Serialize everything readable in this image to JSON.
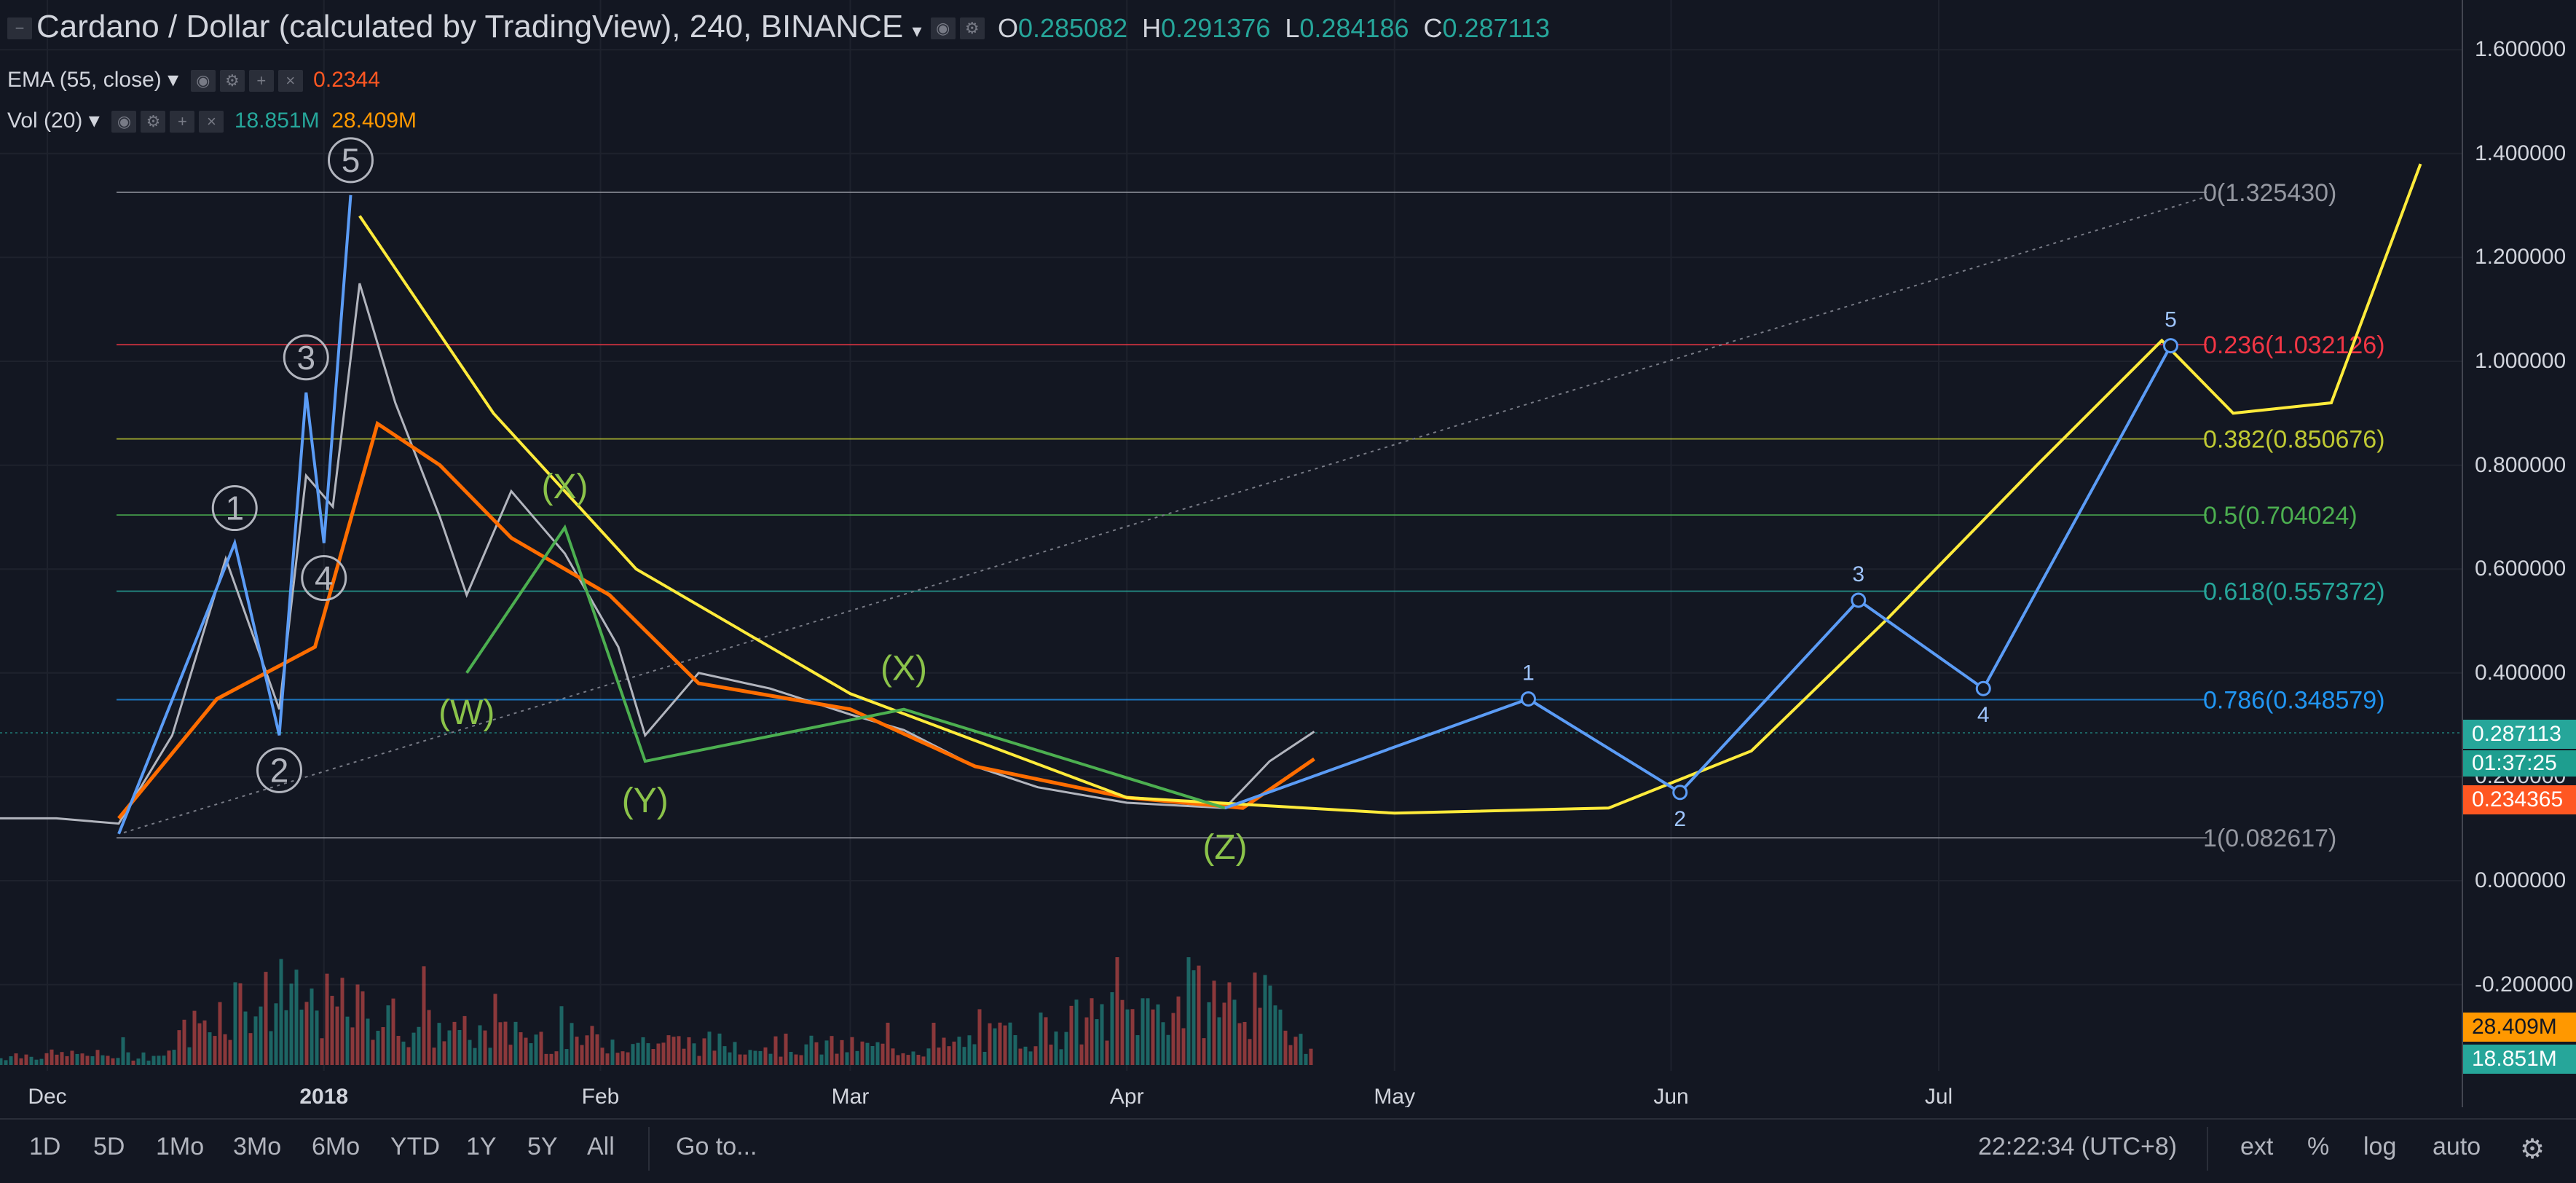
{
  "legend": {
    "symbol_title": "Cardano / Dollar (calculated by TradingView), 240, BINANCE",
    "open_label": "O",
    "open_value": "0.285082",
    "high_label": "H",
    "high_value": "0.291376",
    "low_label": "L",
    "low_value": "0.284186",
    "close_label": "C",
    "close_value": "0.287113",
    "ema_label": "EMA (55, close)",
    "ema_value": "0.2344",
    "vol_label": "Vol (20)",
    "vol_value_1": "18.851M",
    "vol_value_2": "28.409M"
  },
  "colors": {
    "background": "#131722",
    "up": "#26a69a",
    "down": "#ef5350",
    "ema": "#ff6d00",
    "fit_curve": "#ffeb3b",
    "wave": "#5b9cf6",
    "wxyz": "#8bc34a"
  },
  "chart_data": {
    "type": "line",
    "ylim": [
      -0.35,
      1.7
    ],
    "y_ticks": [
      "1.600000",
      "1.400000",
      "1.200000",
      "1.000000",
      "0.800000",
      "0.600000",
      "0.400000",
      "0.200000",
      "0.000000",
      "-0.200000"
    ],
    "x_ticks": [
      "Dec",
      "2018",
      "Feb",
      "Mar",
      "Apr",
      "May",
      "Jun",
      "Jul"
    ],
    "fib_levels": [
      {
        "ratio": "0",
        "price": "1.325430",
        "label": "0(1.325430)",
        "color": "#9598a1"
      },
      {
        "ratio": "0.236",
        "price": "1.032126",
        "label": "0.236(1.032126)",
        "color": "#f23645"
      },
      {
        "ratio": "0.382",
        "price": "0.850676",
        "label": "0.382(0.850676)",
        "color": "#c0ca33"
      },
      {
        "ratio": "0.5",
        "price": "0.704024",
        "label": "0.5(0.704024)",
        "color": "#4caf50"
      },
      {
        "ratio": "0.618",
        "price": "0.557372",
        "label": "0.618(0.557372)",
        "color": "#26a69a"
      },
      {
        "ratio": "0.786",
        "price": "0.348579",
        "label": "0.786(0.348579)",
        "color": "#2196f3"
      },
      {
        "ratio": "1",
        "price": "0.082617",
        "label": "1(0.082617)",
        "color": "#9598a1"
      }
    ],
    "impulse_waves": [
      {
        "label": "1",
        "date": "2017-12-22",
        "price": 0.65
      },
      {
        "label": "2",
        "date": "2017-12-27",
        "price": 0.28
      },
      {
        "label": "3",
        "date": "2017-12-30",
        "price": 0.94
      },
      {
        "label": "4",
        "date": "2018-01-01",
        "price": 0.65
      },
      {
        "label": "5",
        "date": "2018-01-04",
        "price": 1.32
      }
    ],
    "correction_waves": [
      {
        "label": "(W)",
        "date": "2018-01-17",
        "price": 0.4
      },
      {
        "label": "(X)",
        "date": "2018-01-28",
        "price": 0.68
      },
      {
        "label": "(Y)",
        "date": "2018-02-06",
        "price": 0.23
      },
      {
        "label": "(X)",
        "date": "2018-03-07",
        "price": 0.33
      },
      {
        "label": "(Z)",
        "date": "2018-04-12",
        "price": 0.14
      }
    ],
    "projected_waves": [
      {
        "label": "1",
        "date": "2018-05-16",
        "price": 0.35
      },
      {
        "label": "2",
        "date": "2018-06-02",
        "price": 0.17
      },
      {
        "label": "3",
        "date": "2018-06-22",
        "price": 0.54
      },
      {
        "label": "4",
        "date": "2018-07-06",
        "price": 0.37
      },
      {
        "label": "5",
        "date": "2018-07-27",
        "price": 1.03
      }
    ],
    "price_series": [
      {
        "date": "2017-11-25",
        "price": 0.12
      },
      {
        "date": "2017-12-02",
        "price": 0.12
      },
      {
        "date": "2017-12-09",
        "price": 0.11
      },
      {
        "date": "2017-12-15",
        "price": 0.28
      },
      {
        "date": "2017-12-21",
        "price": 0.62
      },
      {
        "date": "2017-12-27",
        "price": 0.33
      },
      {
        "date": "2017-12-30",
        "price": 0.78
      },
      {
        "date": "2018-01-02",
        "price": 0.72
      },
      {
        "date": "2018-01-05",
        "price": 1.15
      },
      {
        "date": "2018-01-09",
        "price": 0.92
      },
      {
        "date": "2018-01-14",
        "price": 0.7
      },
      {
        "date": "2018-01-17",
        "price": 0.55
      },
      {
        "date": "2018-01-22",
        "price": 0.75
      },
      {
        "date": "2018-01-28",
        "price": 0.63
      },
      {
        "date": "2018-02-03",
        "price": 0.45
      },
      {
        "date": "2018-02-06",
        "price": 0.28
      },
      {
        "date": "2018-02-12",
        "price": 0.4
      },
      {
        "date": "2018-02-20",
        "price": 0.37
      },
      {
        "date": "2018-03-01",
        "price": 0.32
      },
      {
        "date": "2018-03-07",
        "price": 0.29
      },
      {
        "date": "2018-03-15",
        "price": 0.22
      },
      {
        "date": "2018-03-22",
        "price": 0.18
      },
      {
        "date": "2018-04-01",
        "price": 0.15
      },
      {
        "date": "2018-04-12",
        "price": 0.14
      },
      {
        "date": "2018-04-17",
        "price": 0.23
      },
      {
        "date": "2018-04-22",
        "price": 0.287
      }
    ],
    "ema_series": [
      {
        "date": "2017-12-09",
        "price": 0.12
      },
      {
        "date": "2017-12-20",
        "price": 0.35
      },
      {
        "date": "2017-12-31",
        "price": 0.45
      },
      {
        "date": "2018-01-07",
        "price": 0.88
      },
      {
        "date": "2018-01-14",
        "price": 0.8
      },
      {
        "date": "2018-01-22",
        "price": 0.66
      },
      {
        "date": "2018-02-02",
        "price": 0.55
      },
      {
        "date": "2018-02-12",
        "price": 0.38
      },
      {
        "date": "2018-03-01",
        "price": 0.33
      },
      {
        "date": "2018-03-15",
        "price": 0.22
      },
      {
        "date": "2018-04-01",
        "price": 0.16
      },
      {
        "date": "2018-04-14",
        "price": 0.14
      },
      {
        "date": "2018-04-22",
        "price": 0.2344
      }
    ],
    "fit_curve": [
      {
        "date": "2018-01-05",
        "price": 1.28
      },
      {
        "date": "2018-01-20",
        "price": 0.9
      },
      {
        "date": "2018-02-05",
        "price": 0.6
      },
      {
        "date": "2018-03-01",
        "price": 0.36
      },
      {
        "date": "2018-04-01",
        "price": 0.16
      },
      {
        "date": "2018-05-01",
        "price": 0.13
      },
      {
        "date": "2018-05-25",
        "price": 0.14
      },
      {
        "date": "2018-06-10",
        "price": 0.25
      },
      {
        "date": "2018-06-25",
        "price": 0.5
      },
      {
        "date": "2018-07-12",
        "price": 0.8
      },
      {
        "date": "2018-07-26",
        "price": 1.04
      },
      {
        "date": "2018-08-03",
        "price": 0.9
      },
      {
        "date": "2018-08-14",
        "price": 0.92
      },
      {
        "date": "2018-08-24",
        "price": 1.38
      }
    ],
    "volume_series": [
      {
        "date": "2017-12-15",
        "volume": 0.4
      },
      {
        "date": "2017-12-22",
        "volume": 1.0
      },
      {
        "date": "2018-01-04",
        "volume": 0.85
      },
      {
        "date": "2018-01-14",
        "volume": 0.5
      },
      {
        "date": "2018-02-06",
        "volume": 0.35
      },
      {
        "date": "2018-03-10",
        "volume": 0.25
      },
      {
        "date": "2018-04-10",
        "volume": 1.0
      },
      {
        "date": "2018-04-16",
        "volume": 0.9
      },
      {
        "date": "2018-04-22",
        "volume": 0.3
      }
    ]
  },
  "y_axis": {
    "last_price": "0.287113",
    "countdown": "01:37:25",
    "ema_tag": "0.234365",
    "vol_tag_1": "28.409M",
    "vol_tag_2": "18.851M"
  },
  "bottom_bar": {
    "ranges": [
      "1D",
      "5D",
      "1Mo",
      "3Mo",
      "6Mo",
      "YTD",
      "1Y",
      "5Y",
      "All"
    ],
    "goto": "Go to...",
    "time": "22:22:34 (UTC+8)",
    "ext": "ext",
    "percent": "%",
    "log": "log",
    "auto": "auto"
  }
}
